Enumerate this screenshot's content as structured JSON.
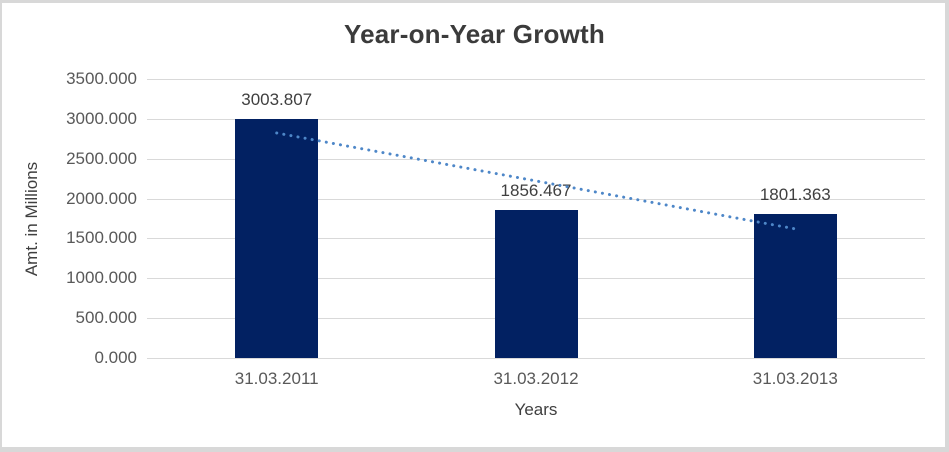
{
  "chart_data": {
    "type": "bar",
    "title": "Year-on-Year Growth",
    "categories": [
      "31.03.2011",
      "31.03.2012",
      "31.03.2013"
    ],
    "values": [
      3003.807,
      1856.467,
      1801.363
    ],
    "data_labels": [
      "3003.807",
      "1856.467",
      "1801.363"
    ],
    "xlabel": "Years",
    "ylabel": "Amt. in Millions",
    "ylim": [
      0,
      3500
    ],
    "ytick_interval": 500,
    "ytick_labels_top_to_bottom": [
      "3500.000",
      "3000.000",
      "2500.000",
      "2000.000",
      "1500.000",
      "1000.000",
      "500.000",
      "0.000"
    ],
    "grid": true,
    "legend": "none",
    "bar_color": "#022162",
    "gridline_color": "#d9d9d9",
    "background_color": "#ffffff",
    "frame_border_color": "#d8d8d8",
    "text_colors": {
      "title": "#3b3b3b",
      "tick_labels": "#595959",
      "data_labels": "#3f3f3f",
      "axis_titles": "#3f3f3f"
    },
    "trendline": {
      "kind": "linear",
      "style": "round-dot",
      "color": "#4e87c8",
      "start_value": 2822,
      "end_value": 1619
    }
  }
}
